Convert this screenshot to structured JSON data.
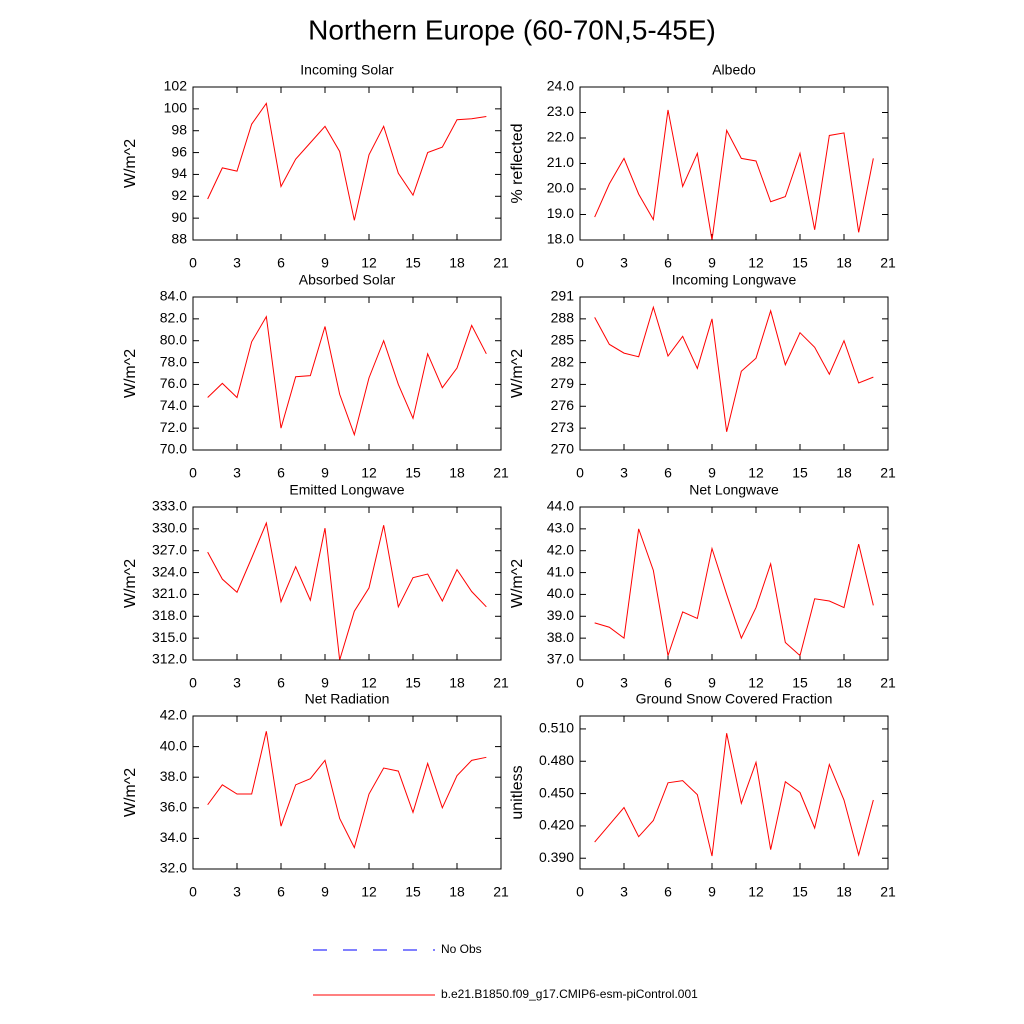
{
  "title": "Northern Europe (60-70N,5-45E)",
  "legend": [
    {
      "name": "No Obs",
      "color": "#0000ff",
      "dashed": true
    },
    {
      "name": "b.e21.B1850.f09_g17.CMIP6-esm-piControl.001",
      "color": "#ff0000",
      "dashed": false
    }
  ],
  "chart_data": [
    {
      "type": "line",
      "title": "Incoming Solar",
      "y_label": "W/m^2",
      "color": "#ff0000",
      "x": [
        1,
        2,
        3,
        4,
        5,
        6,
        7,
        8,
        9,
        10,
        11,
        12,
        13,
        14,
        15,
        16,
        17,
        18,
        19,
        20
      ],
      "values": [
        91.75,
        94.6,
        94.3,
        98.6,
        100.5,
        92.9,
        95.4,
        96.9,
        98.4,
        96.1,
        89.8,
        95.8,
        98.4,
        94.1,
        92.1,
        96.0,
        96.5,
        99.0,
        99.1,
        99.3
      ],
      "xlim": [
        0,
        21
      ],
      "xticks": [
        0,
        3,
        6,
        9,
        12,
        15,
        18,
        21
      ],
      "ylim": [
        88,
        102
      ],
      "yticks": [
        88,
        90,
        92,
        94,
        96,
        98,
        100,
        102
      ]
    },
    {
      "type": "line",
      "title": "Albedo",
      "y_label": "% reflected",
      "color": "#ff0000",
      "x": [
        1,
        2,
        3,
        4,
        5,
        6,
        7,
        8,
        9,
        10,
        11,
        12,
        13,
        14,
        15,
        16,
        17,
        18,
        19,
        20
      ],
      "values": [
        18.9,
        20.2,
        21.2,
        19.8,
        18.8,
        23.1,
        20.1,
        21.4,
        18.0,
        22.3,
        21.2,
        21.1,
        19.5,
        19.7,
        21.4,
        18.4,
        22.1,
        22.2,
        18.3,
        21.2
      ],
      "xlim": [
        0,
        21
      ],
      "xticks": [
        0,
        3,
        6,
        9,
        12,
        15,
        18,
        21
      ],
      "ylim": [
        18,
        24
      ],
      "yticks": [
        {
          "value": 18,
          "label": "18.0"
        },
        {
          "value": 19,
          "label": "19.0"
        },
        {
          "value": 20,
          "label": "20.0"
        },
        {
          "value": 21,
          "label": "21.0"
        },
        {
          "value": 22,
          "label": "22.0"
        },
        {
          "value": 23,
          "label": "23.0"
        },
        {
          "value": 24,
          "label": "24.0"
        }
      ]
    },
    {
      "type": "line",
      "title": "Absorbed Solar",
      "y_label": "W/m^2",
      "color": "#ff0000",
      "x": [
        1,
        2,
        3,
        4,
        5,
        6,
        7,
        8,
        9,
        10,
        11,
        12,
        13,
        14,
        15,
        16,
        17,
        18,
        19,
        20
      ],
      "values": [
        74.8,
        76.1,
        74.8,
        79.9,
        82.2,
        72.0,
        76.7,
        76.8,
        81.3,
        75.1,
        71.4,
        76.6,
        80.0,
        76.0,
        72.9,
        78.8,
        75.7,
        77.5,
        81.4,
        78.8
      ],
      "xlim": [
        0,
        21
      ],
      "xticks": [
        0,
        3,
        6,
        9,
        12,
        15,
        18,
        21
      ],
      "ylim": [
        70,
        84
      ],
      "yticks": [
        {
          "value": 70,
          "label": "70.0"
        },
        {
          "value": 72,
          "label": "72.0"
        },
        {
          "value": 74,
          "label": "74.0"
        },
        {
          "value": 76,
          "label": "76.0"
        },
        {
          "value": 78,
          "label": "78.0"
        },
        {
          "value": 80,
          "label": "80.0"
        },
        {
          "value": 82,
          "label": "82.0"
        },
        {
          "value": 84,
          "label": "84.0"
        }
      ]
    },
    {
      "type": "line",
      "title": "Incoming Longwave",
      "y_label": "W/m^2",
      "color": "#ff0000",
      "x": [
        1,
        2,
        3,
        4,
        5,
        6,
        7,
        8,
        9,
        10,
        11,
        12,
        13,
        14,
        15,
        16,
        17,
        18,
        19,
        20
      ],
      "values": [
        288.2,
        284.5,
        283.3,
        282.8,
        289.6,
        282.9,
        285.6,
        281.2,
        288.0,
        272.5,
        280.8,
        282.6,
        289.1,
        281.7,
        286.1,
        284.1,
        280.4,
        285.0,
        279.2,
        280.0
      ],
      "xlim": [
        0,
        21
      ],
      "xticks": [
        0,
        3,
        6,
        9,
        12,
        15,
        18,
        21
      ],
      "ylim": [
        270,
        291
      ],
      "yticks": [
        270,
        273,
        276,
        279,
        282,
        285,
        288,
        291
      ]
    },
    {
      "type": "line",
      "title": "Emitted Longwave",
      "y_label": "W/m^2",
      "color": "#ff0000",
      "x": [
        1,
        2,
        3,
        4,
        5,
        6,
        7,
        8,
        9,
        10,
        11,
        12,
        13,
        14,
        15,
        16,
        17,
        18,
        19,
        20
      ],
      "values": [
        326.8,
        323.1,
        321.3,
        326.0,
        330.8,
        320.0,
        324.8,
        320.2,
        330.1,
        312.0,
        318.7,
        321.9,
        330.5,
        319.3,
        323.3,
        323.8,
        320.1,
        324.4,
        321.4,
        319.3
      ],
      "xlim": [
        0,
        21
      ],
      "xticks": [
        0,
        3,
        6,
        9,
        12,
        15,
        18,
        21
      ],
      "ylim": [
        312,
        333
      ],
      "yticks": [
        {
          "value": 312,
          "label": "312.0"
        },
        {
          "value": 315,
          "label": "315.0"
        },
        {
          "value": 318,
          "label": "318.0"
        },
        {
          "value": 321,
          "label": "321.0"
        },
        {
          "value": 324,
          "label": "324.0"
        },
        {
          "value": 327,
          "label": "327.0"
        },
        {
          "value": 330,
          "label": "330.0"
        },
        {
          "value": 333,
          "label": "333.0"
        }
      ]
    },
    {
      "type": "line",
      "title": "Net Longwave",
      "y_label": "W/m^2",
      "color": "#ff0000",
      "x": [
        1,
        2,
        3,
        4,
        5,
        6,
        7,
        8,
        9,
        10,
        11,
        12,
        13,
        14,
        15,
        16,
        17,
        18,
        19,
        20
      ],
      "values": [
        38.7,
        38.5,
        38.0,
        43.0,
        41.1,
        37.2,
        39.2,
        38.9,
        42.1,
        40.0,
        38.0,
        39.4,
        41.4,
        37.8,
        37.2,
        39.8,
        39.7,
        39.4,
        42.3,
        39.5
      ],
      "xlim": [
        0,
        21
      ],
      "xticks": [
        0,
        3,
        6,
        9,
        12,
        15,
        18,
        21
      ],
      "ylim": [
        37,
        44
      ],
      "yticks": [
        {
          "value": 37,
          "label": "37.0"
        },
        {
          "value": 38,
          "label": "38.0"
        },
        {
          "value": 39,
          "label": "39.0"
        },
        {
          "value": 40,
          "label": "40.0"
        },
        {
          "value": 41,
          "label": "41.0"
        },
        {
          "value": 42,
          "label": "42.0"
        },
        {
          "value": 43,
          "label": "43.0"
        },
        {
          "value": 44,
          "label": "44.0"
        }
      ]
    },
    {
      "type": "line",
      "title": "Net Radiation",
      "y_label": "W/m^2",
      "color": "#ff0000",
      "x": [
        1,
        2,
        3,
        4,
        5,
        6,
        7,
        8,
        9,
        10,
        11,
        12,
        13,
        14,
        15,
        16,
        17,
        18,
        19,
        20
      ],
      "values": [
        36.2,
        37.5,
        36.9,
        36.9,
        41.0,
        34.8,
        37.5,
        37.9,
        39.1,
        35.3,
        33.4,
        36.9,
        38.6,
        38.4,
        35.7,
        38.9,
        36.0,
        38.1,
        39.1,
        39.3
      ],
      "xlim": [
        0,
        21
      ],
      "xticks": [
        0,
        3,
        6,
        9,
        12,
        15,
        18,
        21
      ],
      "ylim": [
        32,
        42
      ],
      "yticks": [
        {
          "value": 32,
          "label": "32.0"
        },
        {
          "value": 34,
          "label": "34.0"
        },
        {
          "value": 36,
          "label": "36.0"
        },
        {
          "value": 38,
          "label": "38.0"
        },
        {
          "value": 40,
          "label": "40.0"
        },
        {
          "value": 42,
          "label": "42.0"
        }
      ]
    },
    {
      "type": "line",
      "title": "Ground Snow Covered Fraction",
      "y_label": "unitless",
      "color": "#ff0000",
      "x": [
        1,
        2,
        3,
        4,
        5,
        6,
        7,
        8,
        9,
        10,
        11,
        12,
        13,
        14,
        15,
        16,
        17,
        18,
        19,
        20
      ],
      "values": [
        0.405,
        0.421,
        0.437,
        0.41,
        0.425,
        0.46,
        0.462,
        0.449,
        0.392,
        0.506,
        0.441,
        0.479,
        0.398,
        0.461,
        0.451,
        0.418,
        0.477,
        0.444,
        0.393,
        0.444
      ],
      "xlim": [
        0,
        21
      ],
      "xticks": [
        0,
        3,
        6,
        9,
        12,
        15,
        18,
        21
      ],
      "ylim": [
        0.38,
        0.522
      ],
      "yticks": [
        {
          "value": 0.39,
          "label": "0.390"
        },
        {
          "value": 0.42,
          "label": "0.420"
        },
        {
          "value": 0.45,
          "label": "0.450"
        },
        {
          "value": 0.48,
          "label": "0.480"
        },
        {
          "value": 0.51,
          "label": "0.510"
        }
      ]
    }
  ]
}
